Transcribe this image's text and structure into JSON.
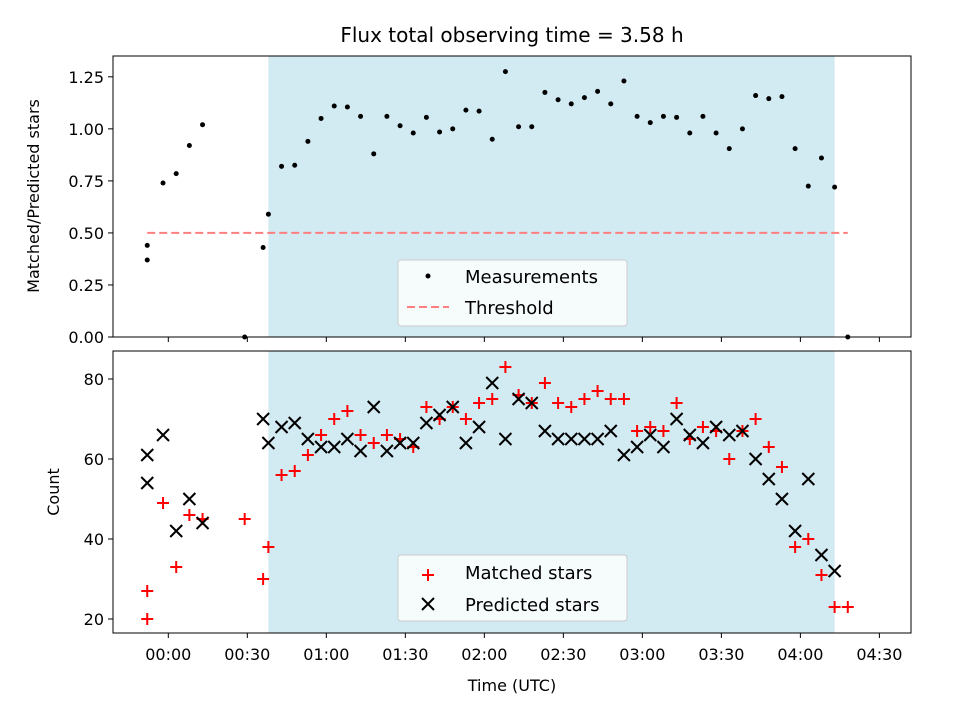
{
  "chart_data": [
    {
      "type": "scatter",
      "title": "Flux total observing time = 3.58 h",
      "ylabel": "Matched/Predicted stars",
      "ylim": [
        0,
        1.35
      ],
      "xlim": [
        -21,
        282
      ],
      "yticks": [
        0.0,
        0.25,
        0.5,
        0.75,
        1.0,
        1.25
      ],
      "ytick_labels": [
        "0.00",
        "0.25",
        "0.50",
        "0.75",
        "1.00",
        "1.25"
      ],
      "shaded_span": [
        38,
        253
      ],
      "legend_position": "lower-center",
      "legend": [
        "Measurements",
        "Threshold"
      ],
      "threshold": {
        "name": "Threshold",
        "value": 0.5,
        "x_range": [
          -8,
          258
        ],
        "color": "#ff7f7f"
      },
      "series": [
        {
          "name": "Measurements",
          "marker": "dot",
          "color": "#000000",
          "points": [
            [
              -8,
              0.37
            ],
            [
              -8,
              0.44
            ],
            [
              -2,
              0.74
            ],
            [
              3,
              0.785
            ],
            [
              8,
              0.92
            ],
            [
              13,
              1.02
            ],
            [
              29,
              0.0
            ],
            [
              36,
              0.43
            ],
            [
              38,
              0.59
            ],
            [
              43,
              0.82
            ],
            [
              48,
              0.825
            ],
            [
              53,
              0.94
            ],
            [
              58,
              1.05
            ],
            [
              63,
              1.11
            ],
            [
              68,
              1.105
            ],
            [
              73,
              1.06
            ],
            [
              78,
              0.88
            ],
            [
              83,
              1.06
            ],
            [
              88,
              1.015
            ],
            [
              93,
              0.98
            ],
            [
              98,
              1.055
            ],
            [
              103,
              0.985
            ],
            [
              108,
              1.0
            ],
            [
              113,
              1.09
            ],
            [
              118,
              1.085
            ],
            [
              123,
              0.95
            ],
            [
              128,
              1.275
            ],
            [
              133,
              1.01
            ],
            [
              138,
              1.01
            ],
            [
              143,
              1.175
            ],
            [
              148,
              1.14
            ],
            [
              153,
              1.12
            ],
            [
              158,
              1.15
            ],
            [
              163,
              1.18
            ],
            [
              168,
              1.12
            ],
            [
              173,
              1.23
            ],
            [
              178,
              1.06
            ],
            [
              183,
              1.03
            ],
            [
              188,
              1.06
            ],
            [
              193,
              1.055
            ],
            [
              198,
              0.98
            ],
            [
              203,
              1.06
            ],
            [
              208,
              0.98
            ],
            [
              213,
              0.905
            ],
            [
              218,
              1.0
            ],
            [
              223,
              1.16
            ],
            [
              228,
              1.145
            ],
            [
              233,
              1.155
            ],
            [
              238,
              0.905
            ],
            [
              243,
              0.725
            ],
            [
              248,
              0.86
            ],
            [
              253,
              0.72
            ],
            [
              258,
              0.0
            ]
          ]
        }
      ]
    },
    {
      "type": "scatter",
      "xlabel": "Time (UTC)",
      "ylabel": "Count",
      "ylim": [
        16.5,
        87
      ],
      "xlim": [
        -21,
        282
      ],
      "yticks": [
        20,
        40,
        60,
        80
      ],
      "xticks": [
        0,
        30,
        60,
        90,
        120,
        150,
        180,
        210,
        240,
        270
      ],
      "xtick_labels": [
        "00:00",
        "00:30",
        "01:00",
        "01:30",
        "02:00",
        "02:30",
        "03:00",
        "03:30",
        "04:00",
        "04:30"
      ],
      "shaded_span": [
        38,
        253
      ],
      "legend_position": "lower-center",
      "legend": [
        "Matched stars",
        "Predicted stars"
      ],
      "series": [
        {
          "name": "Matched stars",
          "marker": "plus",
          "color": "#ff0000",
          "points": [
            [
              -8,
              20
            ],
            [
              -8,
              27
            ],
            [
              -2,
              49
            ],
            [
              3,
              33
            ],
            [
              8,
              46
            ],
            [
              13,
              45
            ],
            [
              29,
              45
            ],
            [
              36,
              30
            ],
            [
              38,
              38
            ],
            [
              43,
              56
            ],
            [
              48,
              57
            ],
            [
              53,
              61
            ],
            [
              58,
              66
            ],
            [
              63,
              70
            ],
            [
              68,
              72
            ],
            [
              73,
              66
            ],
            [
              78,
              64
            ],
            [
              83,
              66
            ],
            [
              88,
              65
            ],
            [
              93,
              63
            ],
            [
              98,
              73
            ],
            [
              103,
              70
            ],
            [
              108,
              73
            ],
            [
              113,
              70
            ],
            [
              118,
              74
            ],
            [
              123,
              75
            ],
            [
              128,
              83
            ],
            [
              133,
              76
            ],
            [
              138,
              74
            ],
            [
              143,
              79
            ],
            [
              148,
              74
            ],
            [
              153,
              73
            ],
            [
              158,
              75
            ],
            [
              163,
              77
            ],
            [
              168,
              75
            ],
            [
              173,
              75
            ],
            [
              178,
              67
            ],
            [
              183,
              68
            ],
            [
              188,
              67
            ],
            [
              193,
              74
            ],
            [
              198,
              65
            ],
            [
              203,
              68
            ],
            [
              208,
              67
            ],
            [
              213,
              60
            ],
            [
              218,
              67
            ],
            [
              223,
              70
            ],
            [
              228,
              63
            ],
            [
              233,
              58
            ],
            [
              238,
              38
            ],
            [
              243,
              40
            ],
            [
              248,
              31
            ],
            [
              253,
              23
            ],
            [
              258,
              23
            ]
          ]
        },
        {
          "name": "Predicted stars",
          "marker": "x",
          "color": "#000000",
          "points": [
            [
              -8,
              54
            ],
            [
              -8,
              61
            ],
            [
              -2,
              66
            ],
            [
              3,
              42
            ],
            [
              8,
              50
            ],
            [
              13,
              44
            ],
            [
              36,
              70
            ],
            [
              38,
              64
            ],
            [
              43,
              68
            ],
            [
              48,
              69
            ],
            [
              53,
              65
            ],
            [
              58,
              63
            ],
            [
              63,
              63
            ],
            [
              68,
              65
            ],
            [
              73,
              62
            ],
            [
              78,
              73
            ],
            [
              83,
              62
            ],
            [
              88,
              64
            ],
            [
              93,
              64
            ],
            [
              98,
              69
            ],
            [
              103,
              71
            ],
            [
              108,
              73
            ],
            [
              113,
              64
            ],
            [
              118,
              68
            ],
            [
              123,
              79
            ],
            [
              128,
              65
            ],
            [
              133,
              75
            ],
            [
              138,
              74
            ],
            [
              143,
              67
            ],
            [
              148,
              65
            ],
            [
              153,
              65
            ],
            [
              158,
              65
            ],
            [
              163,
              65
            ],
            [
              168,
              67
            ],
            [
              173,
              61
            ],
            [
              178,
              63
            ],
            [
              183,
              66
            ],
            [
              188,
              63
            ],
            [
              193,
              70
            ],
            [
              198,
              66
            ],
            [
              203,
              64
            ],
            [
              208,
              68
            ],
            [
              213,
              66
            ],
            [
              218,
              67
            ],
            [
              223,
              60
            ],
            [
              228,
              55
            ],
            [
              233,
              50
            ],
            [
              238,
              42
            ],
            [
              243,
              55
            ],
            [
              248,
              36
            ],
            [
              253,
              32
            ]
          ]
        }
      ]
    }
  ],
  "colors": {
    "shade": "#add8e6",
    "threshold": "#ff7f7f",
    "matched": "#ff0000",
    "predicted": "#000000"
  }
}
